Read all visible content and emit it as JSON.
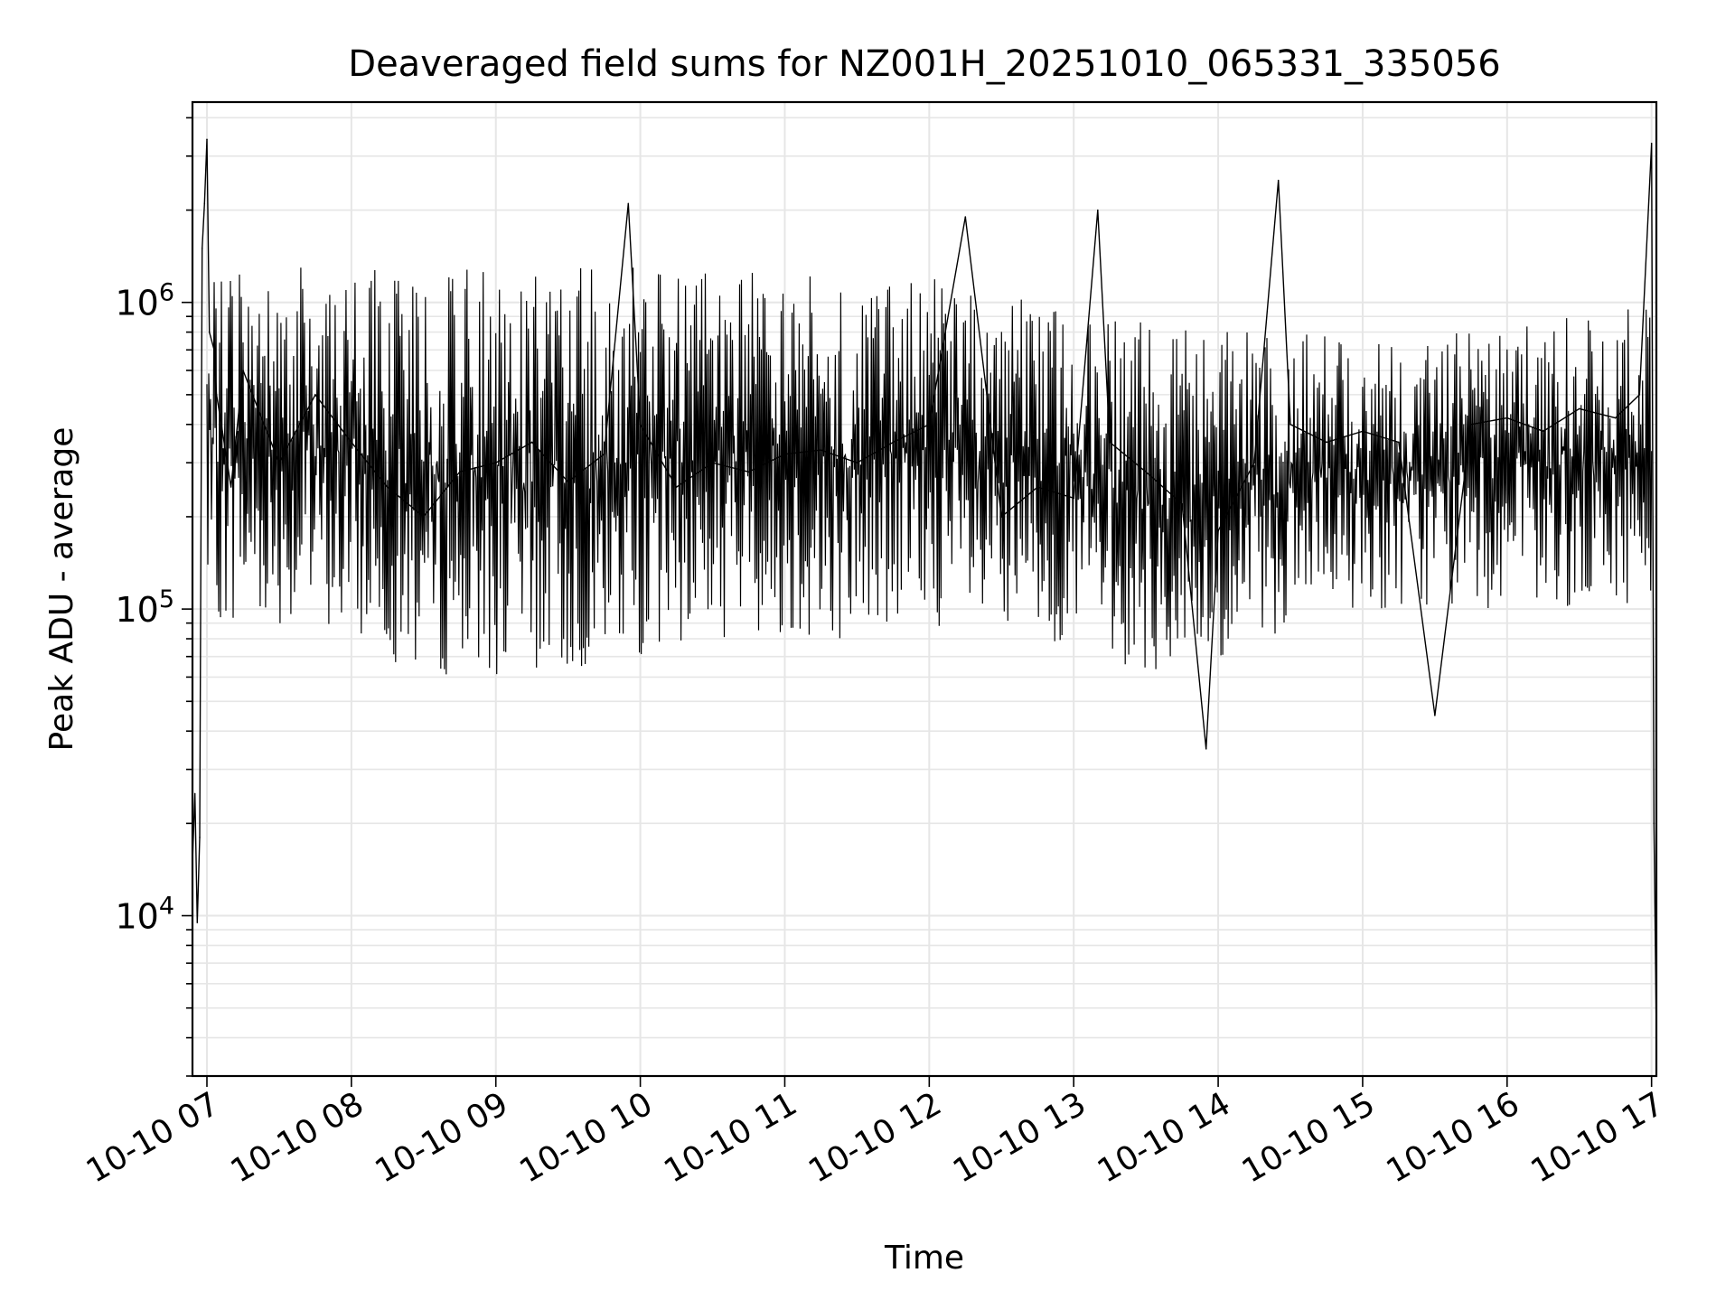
{
  "chart_data": {
    "type": "line",
    "title": "Deaveraged field sums for NZ001H_20251010_065331_335056",
    "xlabel": "Time",
    "ylabel": "Peak ADU - average",
    "xlim": [
      "2025-10-10 06:54",
      "2025-10-10 17:02"
    ],
    "ylim": [
      3000,
      4500000
    ],
    "yscale": "log",
    "grid": true,
    "line_color": "#000000",
    "grid_color": "#e6e6e6",
    "x_ticks": [
      "2025-10-10 07:00",
      "2025-10-10 08:00",
      "2025-10-10 09:00",
      "2025-10-10 10:00",
      "2025-10-10 11:00",
      "2025-10-10 12:00",
      "2025-10-10 13:00",
      "2025-10-10 14:00",
      "2025-10-10 15:00",
      "2025-10-10 16:00",
      "2025-10-10 17:00"
    ],
    "x_tick_labels": [
      "10-10 07",
      "10-10 08",
      "10-10 09",
      "10-10 10",
      "10-10 11",
      "10-10 12",
      "10-10 13",
      "10-10 14",
      "10-10 15",
      "10-10 16",
      "10-10 17"
    ],
    "y_ticks": [
      10000,
      100000,
      1000000
    ],
    "y_tick_labels": [
      {
        "base": "10",
        "exp": "4"
      },
      {
        "base": "10",
        "exp": "5"
      },
      {
        "base": "10",
        "exp": "6"
      }
    ],
    "series": [
      {
        "x": [
          "2025-10-10 06:54",
          "2025-10-10 06:55",
          "2025-10-10 06:56",
          "2025-10-10 06:57",
          "2025-10-10 06:58",
          "2025-10-10 06:59",
          "2025-10-10 07:00",
          "2025-10-10 07:01",
          "2025-10-10 07:03",
          "2025-10-10 07:04",
          "2025-10-10 07:06",
          "2025-10-10 07:10",
          "2025-10-10 07:15",
          "2025-10-10 07:30",
          "2025-10-10 07:45",
          "2025-10-10 08:00",
          "2025-10-10 08:15",
          "2025-10-10 08:30",
          "2025-10-10 08:45",
          "2025-10-10 09:00",
          "2025-10-10 09:15",
          "2025-10-10 09:30",
          "2025-10-10 09:45",
          "2025-10-10 09:55",
          "2025-10-10 10:00",
          "2025-10-10 10:15",
          "2025-10-10 10:30",
          "2025-10-10 10:45",
          "2025-10-10 11:00",
          "2025-10-10 11:15",
          "2025-10-10 11:30",
          "2025-10-10 11:45",
          "2025-10-10 12:00",
          "2025-10-10 12:15",
          "2025-10-10 12:30",
          "2025-10-10 12:45",
          "2025-10-10 13:00",
          "2025-10-10 13:10",
          "2025-10-10 13:15",
          "2025-10-10 13:30",
          "2025-10-10 13:45",
          "2025-10-10 13:55",
          "2025-10-10 14:00",
          "2025-10-10 14:15",
          "2025-10-10 14:25",
          "2025-10-10 14:30",
          "2025-10-10 14:45",
          "2025-10-10 15:00",
          "2025-10-10 15:15",
          "2025-10-10 15:30",
          "2025-10-10 15:45",
          "2025-10-10 16:00",
          "2025-10-10 16:15",
          "2025-10-10 16:30",
          "2025-10-10 16:45",
          "2025-10-10 16:55",
          "2025-10-10 17:00",
          "2025-10-10 17:01",
          "2025-10-10 17:02"
        ],
        "y": [
          15000,
          25000,
          9500,
          18000,
          1500000,
          2100000,
          3400000,
          800000,
          700000,
          500000,
          400000,
          250000,
          600000,
          300000,
          500000,
          350000,
          250000,
          200000,
          280000,
          300000,
          350000,
          260000,
          320000,
          2100000,
          400000,
          250000,
          300000,
          280000,
          320000,
          330000,
          300000,
          350000,
          400000,
          1900000,
          200000,
          250000,
          230000,
          2000000,
          350000,
          280000,
          220000,
          35000,
          180000,
          300000,
          2500000,
          400000,
          350000,
          380000,
          350000,
          45000,
          400000,
          420000,
          380000,
          450000,
          420000,
          500000,
          3300000,
          20000,
          4000
        ]
      }
    ],
    "envelope": {
      "x": [
        "2025-10-10 07:00",
        "2025-10-10 07:30",
        "2025-10-10 08:00",
        "2025-10-10 08:30",
        "2025-10-10 09:00",
        "2025-10-10 09:30",
        "2025-10-10 10:00",
        "2025-10-10 10:30",
        "2025-10-10 11:00",
        "2025-10-10 11:30",
        "2025-10-10 12:00",
        "2025-10-10 12:30",
        "2025-10-10 13:00",
        "2025-10-10 13:30",
        "2025-10-10 14:00",
        "2025-10-10 14:30",
        "2025-10-10 15:00",
        "2025-10-10 15:30",
        "2025-10-10 16:00",
        "2025-10-10 16:30",
        "2025-10-10 17:00"
      ],
      "high": [
        1300000,
        1300000,
        1300000,
        1300000,
        1300000,
        1300000,
        1300000,
        1250000,
        1250000,
        1200000,
        1200000,
        1100000,
        1000000,
        850000,
        800000,
        800000,
        750000,
        800000,
        850000,
        900000,
        1000000
      ],
      "low": [
        90000,
        90000,
        80000,
        60000,
        60000,
        60000,
        70000,
        80000,
        80000,
        80000,
        90000,
        70000,
        80000,
        60000,
        60000,
        90000,
        100000,
        100000,
        100000,
        100000,
        100000
      ]
    }
  }
}
